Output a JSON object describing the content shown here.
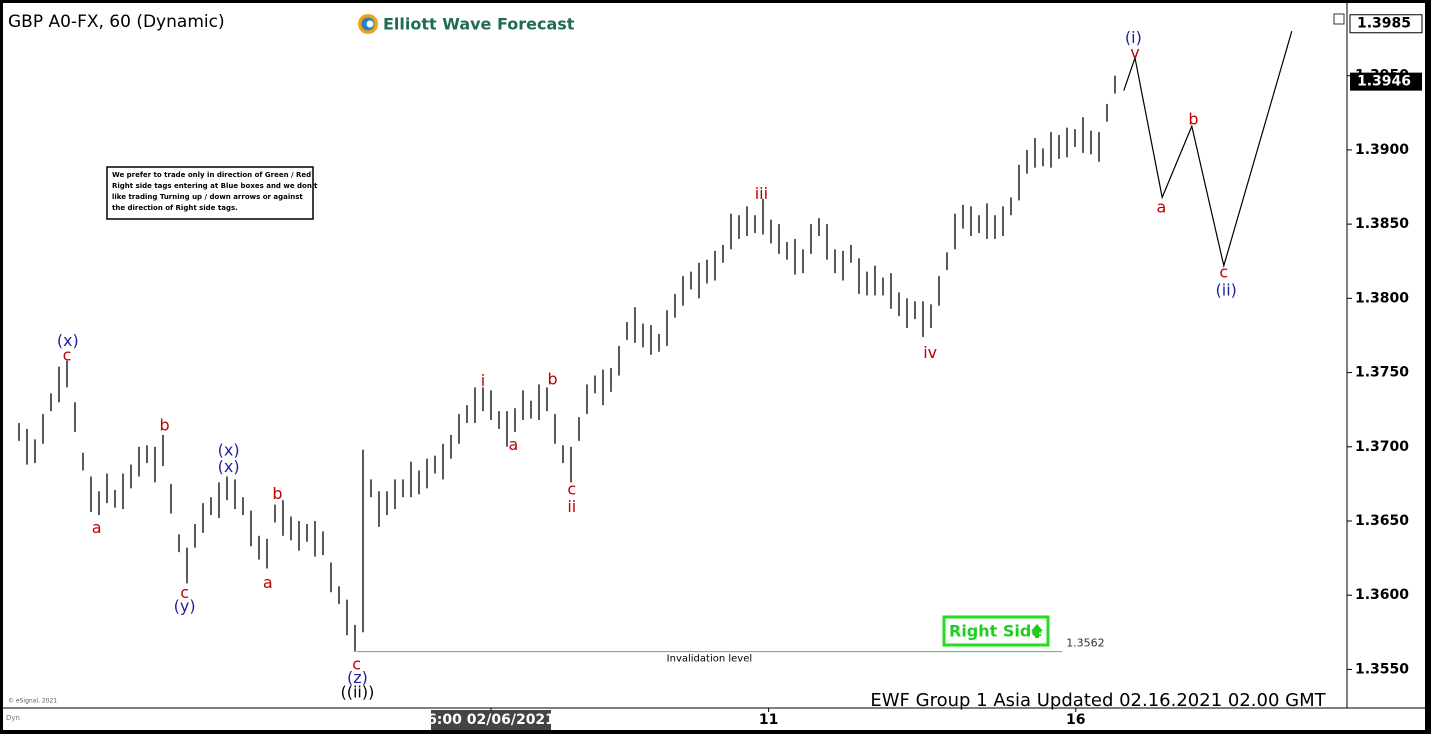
{
  "chart_data": {
    "type": "ohlc",
    "title": "GBP A0-FX, 60 (Dynamic)",
    "logo": "Elliott Wave Forecast",
    "note": [
      "We prefer to trade only in direction of Green / Red",
      "Right side tags entering at Blue boxes and we don't",
      "like trading Turning up / down arrows or against",
      "the direction of Right side tags."
    ],
    "tag": "Right Side",
    "footer": "EWF Group 1 Asia Updated 02.16.2021 02.00 GMT",
    "copyright": "© eSignal, 2021",
    "corner": "Dyn",
    "color": "#000000",
    "grid": false,
    "xlim": [
      0,
      168
    ],
    "ylim": [
      1.3524,
      1.4001
    ],
    "xticks": [
      {
        "value": 61,
        "label": "6:00 02/06/2021"
      },
      {
        "value": 95.7,
        "label": "11"
      },
      {
        "value": 134.1,
        "label": "16"
      }
    ],
    "yticks": [
      {
        "value": 1.355,
        "label": "1.3550"
      },
      {
        "value": 1.36,
        "label": "1.3600"
      },
      {
        "value": 1.365,
        "label": "1.3650"
      },
      {
        "value": 1.37,
        "label": "1.3700"
      },
      {
        "value": 1.375,
        "label": "1.3750"
      },
      {
        "value": 1.38,
        "label": "1.3800"
      },
      {
        "value": 1.385,
        "label": "1.3850"
      },
      {
        "value": 1.39,
        "label": "1.3900"
      },
      {
        "value": 1.395,
        "label": "1.3950"
      }
    ],
    "top_price": 1.3985,
    "last_price": 1.3946,
    "x": [
      2,
      3,
      4,
      5,
      6,
      7,
      8,
      9,
      10,
      11,
      12,
      13,
      14,
      15,
      16,
      17,
      18,
      19,
      20,
      21,
      22,
      23,
      24,
      25,
      26,
      27,
      28,
      29,
      30,
      31,
      32,
      33,
      34,
      35,
      36,
      37,
      38,
      39,
      40,
      41,
      42,
      43,
      44,
      45,
      46,
      47,
      48,
      49,
      50,
      51,
      52,
      53,
      54,
      55,
      56,
      57,
      58,
      59,
      60,
      61,
      62,
      63,
      64,
      65,
      66,
      67,
      68,
      69,
      70,
      71,
      72,
      73,
      74,
      75,
      76,
      77,
      78,
      79,
      80,
      81,
      82,
      83,
      84,
      85,
      86,
      87,
      88,
      89,
      90,
      91,
      92,
      93,
      94,
      95,
      96,
      97,
      98,
      99,
      100,
      101,
      102,
      103,
      104,
      105,
      106,
      107,
      108,
      109,
      110,
      111,
      112,
      113,
      114,
      115,
      116,
      117,
      118,
      119,
      120,
      121,
      122,
      123,
      124,
      125,
      126,
      127,
      128,
      129,
      130,
      131,
      132,
      133,
      134,
      135,
      136,
      137,
      138,
      139
    ],
    "high": [
      1.3716,
      1.3712,
      1.3705,
      1.3722,
      1.3736,
      1.3754,
      1.3758,
      1.373,
      1.3696,
      1.368,
      1.367,
      1.3682,
      1.3671,
      1.3682,
      1.3688,
      1.37,
      1.3701,
      1.37,
      1.3708,
      1.3675,
      1.3641,
      1.3632,
      1.3648,
      1.3662,
      1.3666,
      1.3676,
      1.368,
      1.3678,
      1.3666,
      1.3657,
      1.364,
      1.3638,
      1.3661,
      1.3664,
      1.3653,
      1.365,
      1.3648,
      1.365,
      1.3643,
      1.3622,
      1.3606,
      1.3597,
      1.358,
      1.3698,
      1.3678,
      1.367,
      1.367,
      1.3678,
      1.3678,
      1.369,
      1.3684,
      1.3692,
      1.3694,
      1.3702,
      1.3708,
      1.3722,
      1.3728,
      1.374,
      1.374,
      1.3738,
      1.3724,
      1.3724,
      1.3726,
      1.3738,
      1.3731,
      1.3742,
      1.374,
      1.3722,
      1.3701,
      1.37,
      1.372,
      1.3742,
      1.3748,
      1.3752,
      1.3753,
      1.3768,
      1.3784,
      1.3794,
      1.3783,
      1.3782,
      1.3776,
      1.3792,
      1.3803,
      1.3815,
      1.3818,
      1.3824,
      1.3826,
      1.3832,
      1.3836,
      1.3857,
      1.3856,
      1.3862,
      1.3856,
      1.3867,
      1.3853,
      1.385,
      1.3838,
      1.384,
      1.3833,
      1.385,
      1.3854,
      1.385,
      1.3833,
      1.3832,
      1.3836,
      1.3827,
      1.3818,
      1.3822,
      1.3814,
      1.3817,
      1.3804,
      1.38,
      1.3798,
      1.3798,
      1.3796,
      1.3815,
      1.3831,
      1.3857,
      1.3863,
      1.3862,
      1.3856,
      1.3864,
      1.3856,
      1.3862,
      1.3868,
      1.389,
      1.39,
      1.3908,
      1.3901,
      1.3912,
      1.391,
      1.3915,
      1.3914,
      1.3922,
      1.3913,
      1.3912,
      1.3931,
      1.395
    ],
    "low": [
      1.3704,
      1.3688,
      1.3689,
      1.3702,
      1.3724,
      1.373,
      1.374,
      1.371,
      1.3684,
      1.3656,
      1.3654,
      1.3662,
      1.3659,
      1.3658,
      1.3672,
      1.368,
      1.3689,
      1.3676,
      1.3687,
      1.3655,
      1.3629,
      1.3608,
      1.3632,
      1.3642,
      1.3654,
      1.3652,
      1.3664,
      1.3658,
      1.3654,
      1.3633,
      1.3624,
      1.3618,
      1.3649,
      1.364,
      1.3637,
      1.363,
      1.3636,
      1.3626,
      1.3627,
      1.3602,
      1.3594,
      1.3573,
      1.3562,
      1.3575,
      1.3666,
      1.3646,
      1.3654,
      1.3658,
      1.3666,
      1.3666,
      1.3668,
      1.3672,
      1.3682,
      1.3678,
      1.3692,
      1.3702,
      1.3716,
      1.3716,
      1.3724,
      1.3718,
      1.3712,
      1.37,
      1.371,
      1.3718,
      1.3719,
      1.3718,
      1.3724,
      1.3702,
      1.3689,
      1.3676,
      1.3704,
      1.3722,
      1.3736,
      1.3728,
      1.3737,
      1.3748,
      1.3772,
      1.377,
      1.3767,
      1.3762,
      1.3764,
      1.3768,
      1.3787,
      1.3795,
      1.3806,
      1.38,
      1.381,
      1.3812,
      1.3824,
      1.3833,
      1.384,
      1.3842,
      1.3844,
      1.3843,
      1.3837,
      1.383,
      1.3826,
      1.3816,
      1.3817,
      1.383,
      1.3842,
      1.3826,
      1.3817,
      1.3812,
      1.3824,
      1.3803,
      1.3802,
      1.3802,
      1.3802,
      1.3793,
      1.3788,
      1.378,
      1.3786,
      1.3774,
      1.378,
      1.3795,
      1.3819,
      1.3833,
      1.3847,
      1.3842,
      1.3844,
      1.384,
      1.384,
      1.3842,
      1.3856,
      1.3866,
      1.3884,
      1.3888,
      1.3889,
      1.3888,
      1.3894,
      1.3895,
      1.3902,
      1.3898,
      1.3897,
      1.3892,
      1.3919,
      1.3938
    ],
    "projection": {
      "color": "#000000",
      "x": [
        140.1,
        141.5,
        144.9,
        148.6,
        152.6,
        161.1
      ],
      "values": [
        1.394,
        1.3962,
        1.3868,
        1.3916,
        1.3822,
        1.398
      ]
    },
    "invalidation": {
      "label": "Invalidation level",
      "value": 1.3562,
      "color": "#33cc33",
      "x": [
        44.2,
        132.4
      ]
    },
    "annotations": [
      {
        "text": "(x)",
        "color": "#1f1f9e",
        "x": 8.1,
        "y": 1.3771
      },
      {
        "text": "c",
        "color": "#c00000",
        "x": 8.0,
        "y": 1.3761
      },
      {
        "text": "a",
        "color": "#c00000",
        "x": 11.7,
        "y": 1.3645
      },
      {
        "text": "b",
        "color": "#c00000",
        "x": 20.2,
        "y": 1.3714
      },
      {
        "text": "c",
        "color": "#c00000",
        "x": 22.7,
        "y": 1.3601
      },
      {
        "text": "(y)",
        "color": "#1f1f9e",
        "x": 22.7,
        "y": 1.3592
      },
      {
        "text": "(x)",
        "color": "#1f1f9e",
        "x": 28.2,
        "y": 1.3697
      },
      {
        "text": "(x)",
        "color": "#1f1f9e",
        "x": 28.2,
        "y": 1.3686
      },
      {
        "text": "b",
        "color": "#c00000",
        "x": 34.3,
        "y": 1.3668
      },
      {
        "text": "a",
        "color": "#c00000",
        "x": 33.1,
        "y": 1.3608
      },
      {
        "text": "c",
        "color": "#c00000",
        "x": 44.2,
        "y": 1.3553
      },
      {
        "text": "(z)",
        "color": "#1f1f9e",
        "x": 44.3,
        "y": 1.3544
      },
      {
        "text": "((ii))",
        "color": "#000000",
        "x": 44.3,
        "y": 1.3534
      },
      {
        "text": "i",
        "color": "#c00000",
        "x": 60.0,
        "y": 1.3744
      },
      {
        "text": "a",
        "color": "#c00000",
        "x": 63.8,
        "y": 1.3701
      },
      {
        "text": "b",
        "color": "#c00000",
        "x": 68.7,
        "y": 1.3745
      },
      {
        "text": "c",
        "color": "#c00000",
        "x": 71.1,
        "y": 1.3671
      },
      {
        "text": "ii",
        "color": "#c00000",
        "x": 71.1,
        "y": 1.3659
      },
      {
        "text": "iii",
        "color": "#c00000",
        "x": 94.8,
        "y": 1.387
      },
      {
        "text": "iv",
        "color": "#c00000",
        "x": 115.9,
        "y": 1.3763
      },
      {
        "text": "(i)",
        "color": "#1f1f9e",
        "x": 141.3,
        "y": 1.3975
      },
      {
        "text": "v",
        "color": "#c00000",
        "x": 141.5,
        "y": 1.3965
      },
      {
        "text": "a",
        "color": "#c00000",
        "x": 144.8,
        "y": 1.3861
      },
      {
        "text": "b",
        "color": "#c00000",
        "x": 148.8,
        "y": 1.392
      },
      {
        "text": "c",
        "color": "#c00000",
        "x": 152.6,
        "y": 1.3817
      },
      {
        "text": "(ii)",
        "color": "#1f1f9e",
        "x": 152.9,
        "y": 1.3805
      }
    ]
  }
}
